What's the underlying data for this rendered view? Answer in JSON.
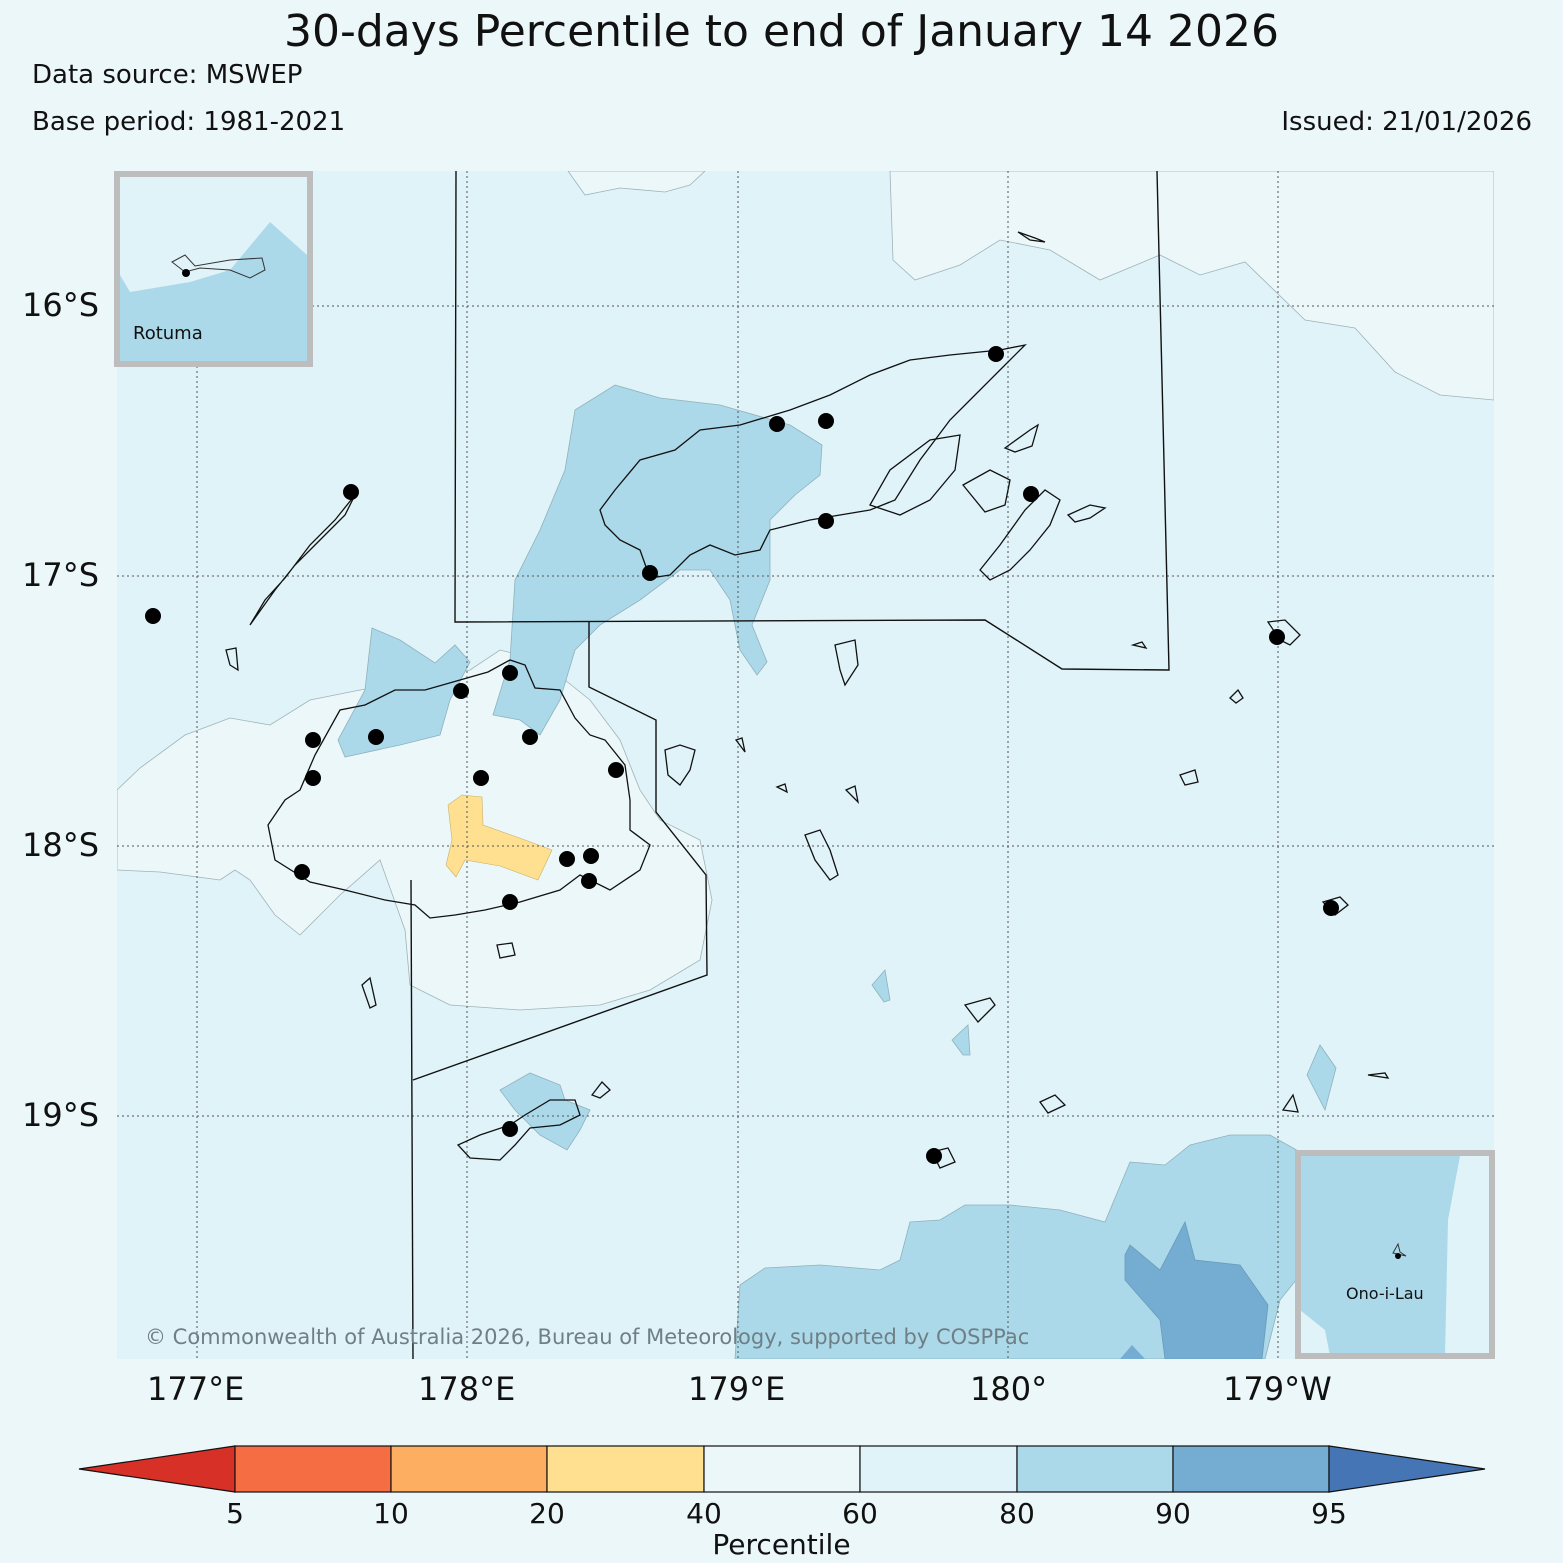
{
  "header": {
    "title": "30-days Percentile to end of January 14 2026",
    "data_source": "Data source: MSWEP",
    "base_period": "Base period: 1981-2021",
    "issued": "Issued: 21/01/2026"
  },
  "axes": {
    "lat_labels": [
      "16°S",
      "17°S",
      "18°S",
      "19°S"
    ],
    "lon_labels": [
      "177°E",
      "178°E",
      "179°E",
      "180°",
      "179°W"
    ],
    "gridlines": true
  },
  "colorbar": {
    "title": "Percentile",
    "ticks": [
      "5",
      "10",
      "20",
      "40",
      "60",
      "80",
      "90",
      "95"
    ],
    "colors": [
      "#d73027",
      "#f46d43",
      "#fdae61",
      "#fee090",
      "#ecf7f9",
      "#e0f3f8",
      "#abd9e9",
      "#74add1",
      "#4575b4"
    ],
    "extend": "both"
  },
  "insets": {
    "rotuma": "Rotuma",
    "ono_i_lau": "Ono-i-Lau"
  },
  "copyright": "© Commonwealth of Australia 2026, Bureau of Meteorology, supported by COSPPac",
  "colors": {
    "background": "#ecf7f9",
    "p60_80": "#e0f3f8",
    "p80_90": "#abd9e9",
    "p90_95": "#74add1",
    "p20_40": "#fee090",
    "p40_60": "#ecf7f9",
    "frame": "#bdbdbd"
  }
}
